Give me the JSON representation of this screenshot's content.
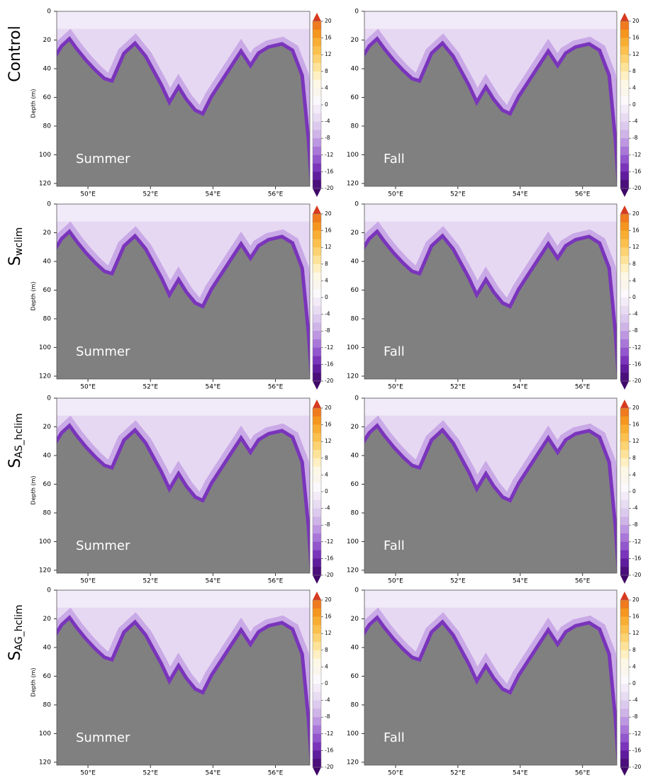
{
  "row_labels": [
    {
      "text": "Control"
    },
    {
      "text": "S",
      "sub": "wclim"
    },
    {
      "text": "S",
      "sub": "AS_hclim"
    },
    {
      "text": "S",
      "sub": "AG_hclim"
    }
  ],
  "chart_data": [
    {
      "type": "section",
      "annotation": "Summer",
      "ylabel": "Depth (m)",
      "xlim": [
        49,
        57.1
      ],
      "ylim": [
        122,
        0
      ],
      "xticks": [
        {
          "value": 50,
          "label": "50°E"
        },
        {
          "value": 52,
          "label": "52°E"
        },
        {
          "value": 54,
          "label": "54°E"
        },
        {
          "value": 56,
          "label": "56°E"
        }
      ],
      "yticks": [
        0,
        20,
        40,
        60,
        80,
        100,
        120
      ],
      "colorbar": {
        "lim": [
          -20,
          20
        ],
        "ticks": [
          20,
          16,
          12,
          8,
          4,
          0,
          -4,
          -8,
          -12,
          -16,
          -20
        ],
        "extend": "both"
      }
    },
    {
      "type": "section",
      "annotation": "Fall",
      "xlim": [
        49,
        57.1
      ],
      "ylim": [
        122,
        0
      ],
      "xticks": [
        {
          "value": 50,
          "label": "50°E"
        },
        {
          "value": 52,
          "label": "52°E"
        },
        {
          "value": 54,
          "label": "54°E"
        },
        {
          "value": 56,
          "label": "56°E"
        }
      ],
      "yticks": [
        0,
        20,
        40,
        60,
        80,
        100,
        120
      ],
      "colorbar": {
        "lim": [
          -20,
          20
        ],
        "ticks": [
          20,
          16,
          12,
          8,
          4,
          0,
          -4,
          -8,
          -12,
          -16,
          -20
        ],
        "extend": "both"
      }
    },
    {
      "type": "section",
      "annotation": "Summer",
      "ylabel": "Depth (m)",
      "xlim": [
        49,
        57.1
      ],
      "ylim": [
        122,
        0
      ],
      "xticks": [
        {
          "value": 50,
          "label": "50°E"
        },
        {
          "value": 52,
          "label": "52°E"
        },
        {
          "value": 54,
          "label": "54°E"
        },
        {
          "value": 56,
          "label": "56°E"
        }
      ],
      "yticks": [
        0,
        20,
        40,
        60,
        80,
        100,
        120
      ],
      "colorbar": {
        "lim": [
          -20,
          20
        ],
        "ticks": [
          20,
          16,
          12,
          8,
          4,
          0,
          -4,
          -8,
          -12,
          -16,
          -20
        ],
        "extend": "both"
      }
    },
    {
      "type": "section",
      "annotation": "Fall",
      "xlim": [
        49,
        57.1
      ],
      "ylim": [
        122,
        0
      ],
      "xticks": [
        {
          "value": 50,
          "label": "50°E"
        },
        {
          "value": 52,
          "label": "52°E"
        },
        {
          "value": 54,
          "label": "54°E"
        },
        {
          "value": 56,
          "label": "56°E"
        }
      ],
      "yticks": [
        0,
        20,
        40,
        60,
        80,
        100,
        120
      ],
      "colorbar": {
        "lim": [
          -20,
          20
        ],
        "ticks": [
          20,
          16,
          12,
          8,
          4,
          0,
          -4,
          -8,
          -12,
          -16,
          -20
        ],
        "extend": "both"
      }
    },
    {
      "type": "section",
      "annotation": "Summer",
      "ylabel": "Depth (m)",
      "xlim": [
        49,
        57.1
      ],
      "ylim": [
        122,
        0
      ],
      "xticks": [
        {
          "value": 50,
          "label": "50°E"
        },
        {
          "value": 52,
          "label": "52°E"
        },
        {
          "value": 54,
          "label": "54°E"
        },
        {
          "value": 56,
          "label": "56°E"
        }
      ],
      "yticks": [
        0,
        20,
        40,
        60,
        80,
        100,
        120
      ],
      "colorbar": {
        "lim": [
          -20,
          20
        ],
        "ticks": [
          20,
          16,
          12,
          8,
          4,
          0,
          -4,
          -8,
          -12,
          -16,
          -20
        ],
        "extend": "both"
      }
    },
    {
      "type": "section",
      "annotation": "Fall",
      "xlim": [
        49,
        57.1
      ],
      "ylim": [
        122,
        0
      ],
      "xticks": [
        {
          "value": 50,
          "label": "50°E"
        },
        {
          "value": 52,
          "label": "52°E"
        },
        {
          "value": 54,
          "label": "54°E"
        },
        {
          "value": 56,
          "label": "56°E"
        }
      ],
      "yticks": [
        0,
        20,
        40,
        60,
        80,
        100,
        120
      ],
      "colorbar": {
        "lim": [
          -20,
          20
        ],
        "ticks": [
          20,
          16,
          12,
          8,
          4,
          0,
          -4,
          -8,
          -12,
          -16,
          -20
        ],
        "extend": "both"
      }
    },
    {
      "type": "section",
      "annotation": "Summer",
      "ylabel": "Depth (m)",
      "xlim": [
        49,
        57.1
      ],
      "ylim": [
        122,
        0
      ],
      "xticks": [
        {
          "value": 50,
          "label": "50°E"
        },
        {
          "value": 52,
          "label": "52°E"
        },
        {
          "value": 54,
          "label": "54°E"
        },
        {
          "value": 56,
          "label": "56°E"
        }
      ],
      "yticks": [
        0,
        20,
        40,
        60,
        80,
        100,
        120
      ],
      "colorbar": {
        "lim": [
          -20,
          20
        ],
        "ticks": [
          20,
          16,
          12,
          8,
          4,
          0,
          -4,
          -8,
          -12,
          -16,
          -20
        ],
        "extend": "both"
      }
    },
    {
      "type": "section",
      "annotation": "Fall",
      "xlim": [
        49,
        57.1
      ],
      "ylim": [
        122,
        0
      ],
      "xticks": [
        {
          "value": 50,
          "label": "50°E"
        },
        {
          "value": 52,
          "label": "52°E"
        },
        {
          "value": 54,
          "label": "54°E"
        },
        {
          "value": 56,
          "label": "56°E"
        }
      ],
      "yticks": [
        0,
        20,
        40,
        60,
        80,
        100,
        120
      ],
      "colorbar": {
        "lim": [
          -20,
          20
        ],
        "ticks": [
          20,
          16,
          12,
          8,
          4,
          0,
          -4,
          -8,
          -12,
          -16,
          -20
        ],
        "extend": "both"
      }
    }
  ]
}
